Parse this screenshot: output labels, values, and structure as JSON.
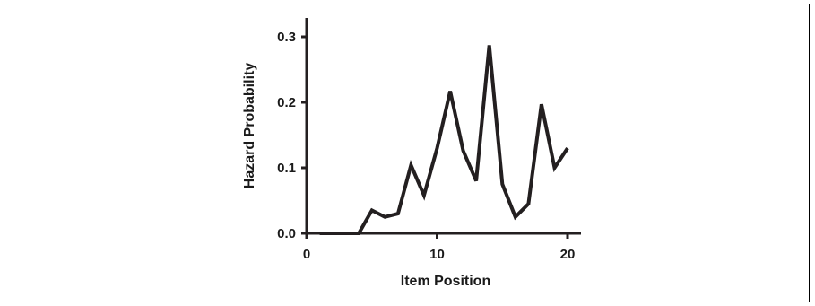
{
  "chart_data": {
    "type": "line",
    "title": "",
    "xlabel": "Item Position",
    "ylabel": "Hazard Probability",
    "xlim": [
      0,
      21
    ],
    "ylim": [
      0,
      0.33
    ],
    "xticks": [
      0,
      10,
      20
    ],
    "xtick_labels": [
      "0",
      "10",
      "20"
    ],
    "yticks": [
      0.0,
      0.1,
      0.2,
      0.3
    ],
    "ytick_labels": [
      "0.0",
      "0.1",
      "0.2",
      "0.3"
    ],
    "grid": false,
    "legend": "none",
    "line_color": "#231f20",
    "series": [
      {
        "x": [
          1,
          2,
          3,
          4,
          5,
          6,
          7,
          8,
          9,
          10,
          11,
          12,
          13,
          14,
          15,
          16,
          17,
          18,
          19,
          20
        ],
        "values": [
          0.0,
          0.0,
          0.0,
          0.0,
          0.035,
          0.025,
          0.03,
          0.104,
          0.058,
          0.13,
          0.217,
          0.126,
          0.08,
          0.287,
          0.075,
          0.025,
          0.045,
          0.197,
          0.1,
          0.13
        ]
      }
    ]
  }
}
